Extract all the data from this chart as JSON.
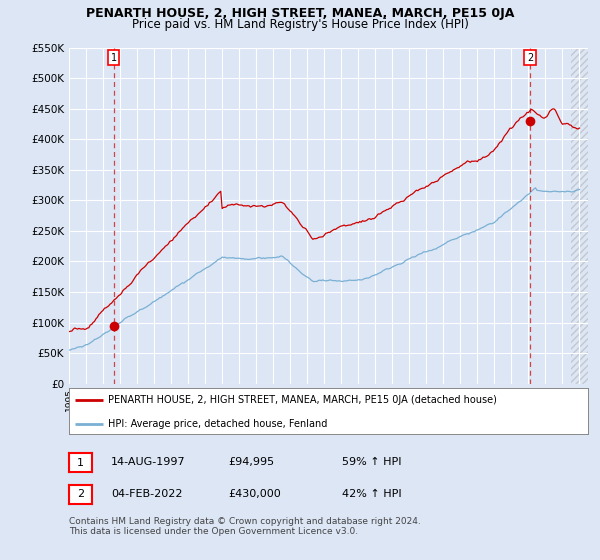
{
  "title": "PENARTH HOUSE, 2, HIGH STREET, MANEA, MARCH, PE15 0JA",
  "subtitle": "Price paid vs. HM Land Registry's House Price Index (HPI)",
  "ylim": [
    0,
    550000
  ],
  "xlim_start": 1995.0,
  "xlim_end": 2025.5,
  "yticks": [
    0,
    50000,
    100000,
    150000,
    200000,
    250000,
    300000,
    350000,
    400000,
    450000,
    500000,
    550000
  ],
  "ytick_labels": [
    "£0",
    "£50K",
    "£100K",
    "£150K",
    "£200K",
    "£250K",
    "£300K",
    "£350K",
    "£400K",
    "£450K",
    "£500K",
    "£550K"
  ],
  "background_color": "#dce6f5",
  "plot_bg_color": "#dce6f5",
  "grid_color": "#ffffff",
  "red_line_color": "#cc0000",
  "blue_line_color": "#7ab0d4",
  "point1_year": 1997.617,
  "point1_value": 94995,
  "point2_year": 2022.09,
  "point2_value": 430000,
  "legend_red_label": "PENARTH HOUSE, 2, HIGH STREET, MANEA, MARCH, PE15 0JA (detached house)",
  "legend_blue_label": "HPI: Average price, detached house, Fenland",
  "table_row1": [
    "1",
    "14-AUG-1997",
    "£94,995",
    "59% ↑ HPI"
  ],
  "table_row2": [
    "2",
    "04-FEB-2022",
    "£430,000",
    "42% ↑ HPI"
  ],
  "footer_line1": "Contains HM Land Registry data © Crown copyright and database right 2024.",
  "footer_line2": "This data is licensed under the Open Government Licence v3.0.",
  "title_fontsize": 9,
  "subtitle_fontsize": 8.5
}
